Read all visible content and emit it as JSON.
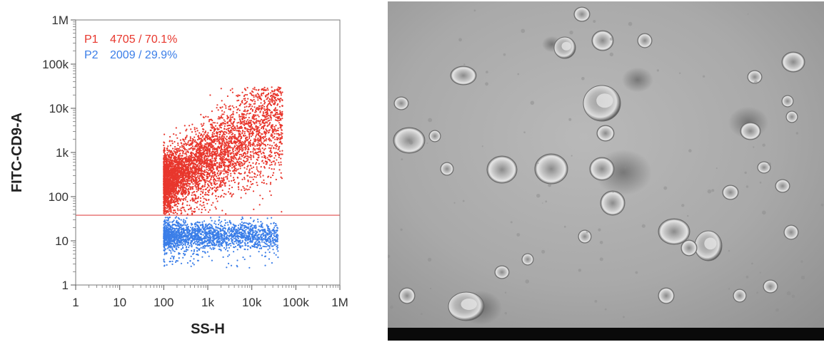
{
  "chart_data": {
    "type": "scatter",
    "title": "",
    "xlabel": "SS-H",
    "ylabel": "FITC-CD9-A",
    "xscale": "log",
    "yscale": "log",
    "xlim": [
      1,
      1000000
    ],
    "ylim": [
      1,
      1000000
    ],
    "x_ticks": [
      1,
      10,
      100,
      1000,
      10000,
      100000,
      1000000
    ],
    "x_tick_labels": [
      "1",
      "10",
      "100",
      "1k",
      "10k",
      "100k",
      "1M"
    ],
    "y_ticks": [
      1,
      10,
      100,
      1000,
      10000,
      100000,
      1000000
    ],
    "y_tick_labels": [
      "1",
      "10",
      "100",
      "1k",
      "10k",
      "100k",
      "1M"
    ],
    "gate_threshold_y": 38,
    "gate_line_color": "#e04a4a",
    "grid": false,
    "legend_placement": "top-left",
    "series": [
      {
        "name": "P1",
        "count": "4705",
        "percent": "70.1%",
        "color": "#e8372d",
        "x_range": [
          100,
          50000
        ],
        "y_range": [
          40,
          30000
        ],
        "n_points": 4705
      },
      {
        "name": "P2",
        "count": "2009",
        "percent": "29.9%",
        "color": "#3b7ee8",
        "x_range": [
          100,
          40000
        ],
        "y_range": [
          2,
          35
        ],
        "n_points": 2009
      }
    ]
  },
  "legend": {
    "p1": {
      "name": "P1",
      "stats": "4705 / 70.1%"
    },
    "p2": {
      "name": "P2",
      "stats": "2009 / 29.9%"
    }
  },
  "micrograph": {
    "scalebar_text": "",
    "scalebar_right_text": ""
  }
}
